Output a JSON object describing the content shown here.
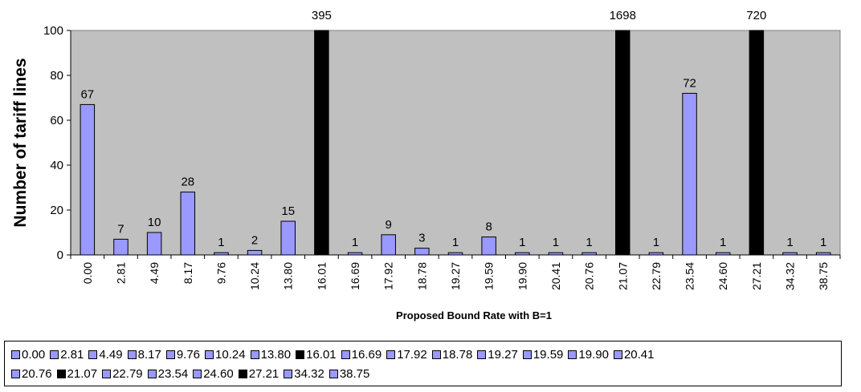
{
  "chart_data": {
    "type": "bar",
    "title": "",
    "xlabel": "Proposed Bound Rate with B=1",
    "ylabel": "Number of tariff lines",
    "ylim": [
      0,
      100
    ],
    "yticks": [
      "0",
      "20",
      "40",
      "60",
      "80",
      "100"
    ],
    "grid": false,
    "legend_position": "bottom",
    "plot_background": "#c0c0c0",
    "colors": {
      "regular": "#9999ff",
      "highlight": "#000000"
    },
    "categories": [
      "0.00",
      "2.81",
      "4.49",
      "8.17",
      "9.76",
      "10.24",
      "13.80",
      "16.01",
      "16.69",
      "17.92",
      "18.78",
      "19.27",
      "19.59",
      "19.90",
      "20.41",
      "20.76",
      "21.07",
      "22.79",
      "23.54",
      "24.60",
      "27.21",
      "34.32",
      "38.75"
    ],
    "values": [
      67,
      7,
      10,
      28,
      1,
      2,
      15,
      395,
      1,
      9,
      3,
      1,
      8,
      1,
      1,
      1,
      1698,
      1,
      72,
      1,
      720,
      1,
      1
    ],
    "data_labels": [
      "67",
      "7",
      "10",
      "28",
      "1",
      "2",
      "15",
      "395",
      "1",
      "9",
      "3",
      "1",
      "8",
      "1",
      "1",
      "1",
      "1698",
      "1",
      "72",
      "1",
      "720",
      "1",
      "1"
    ],
    "highlighted": [
      "16.01",
      "21.07",
      "27.21"
    ]
  }
}
